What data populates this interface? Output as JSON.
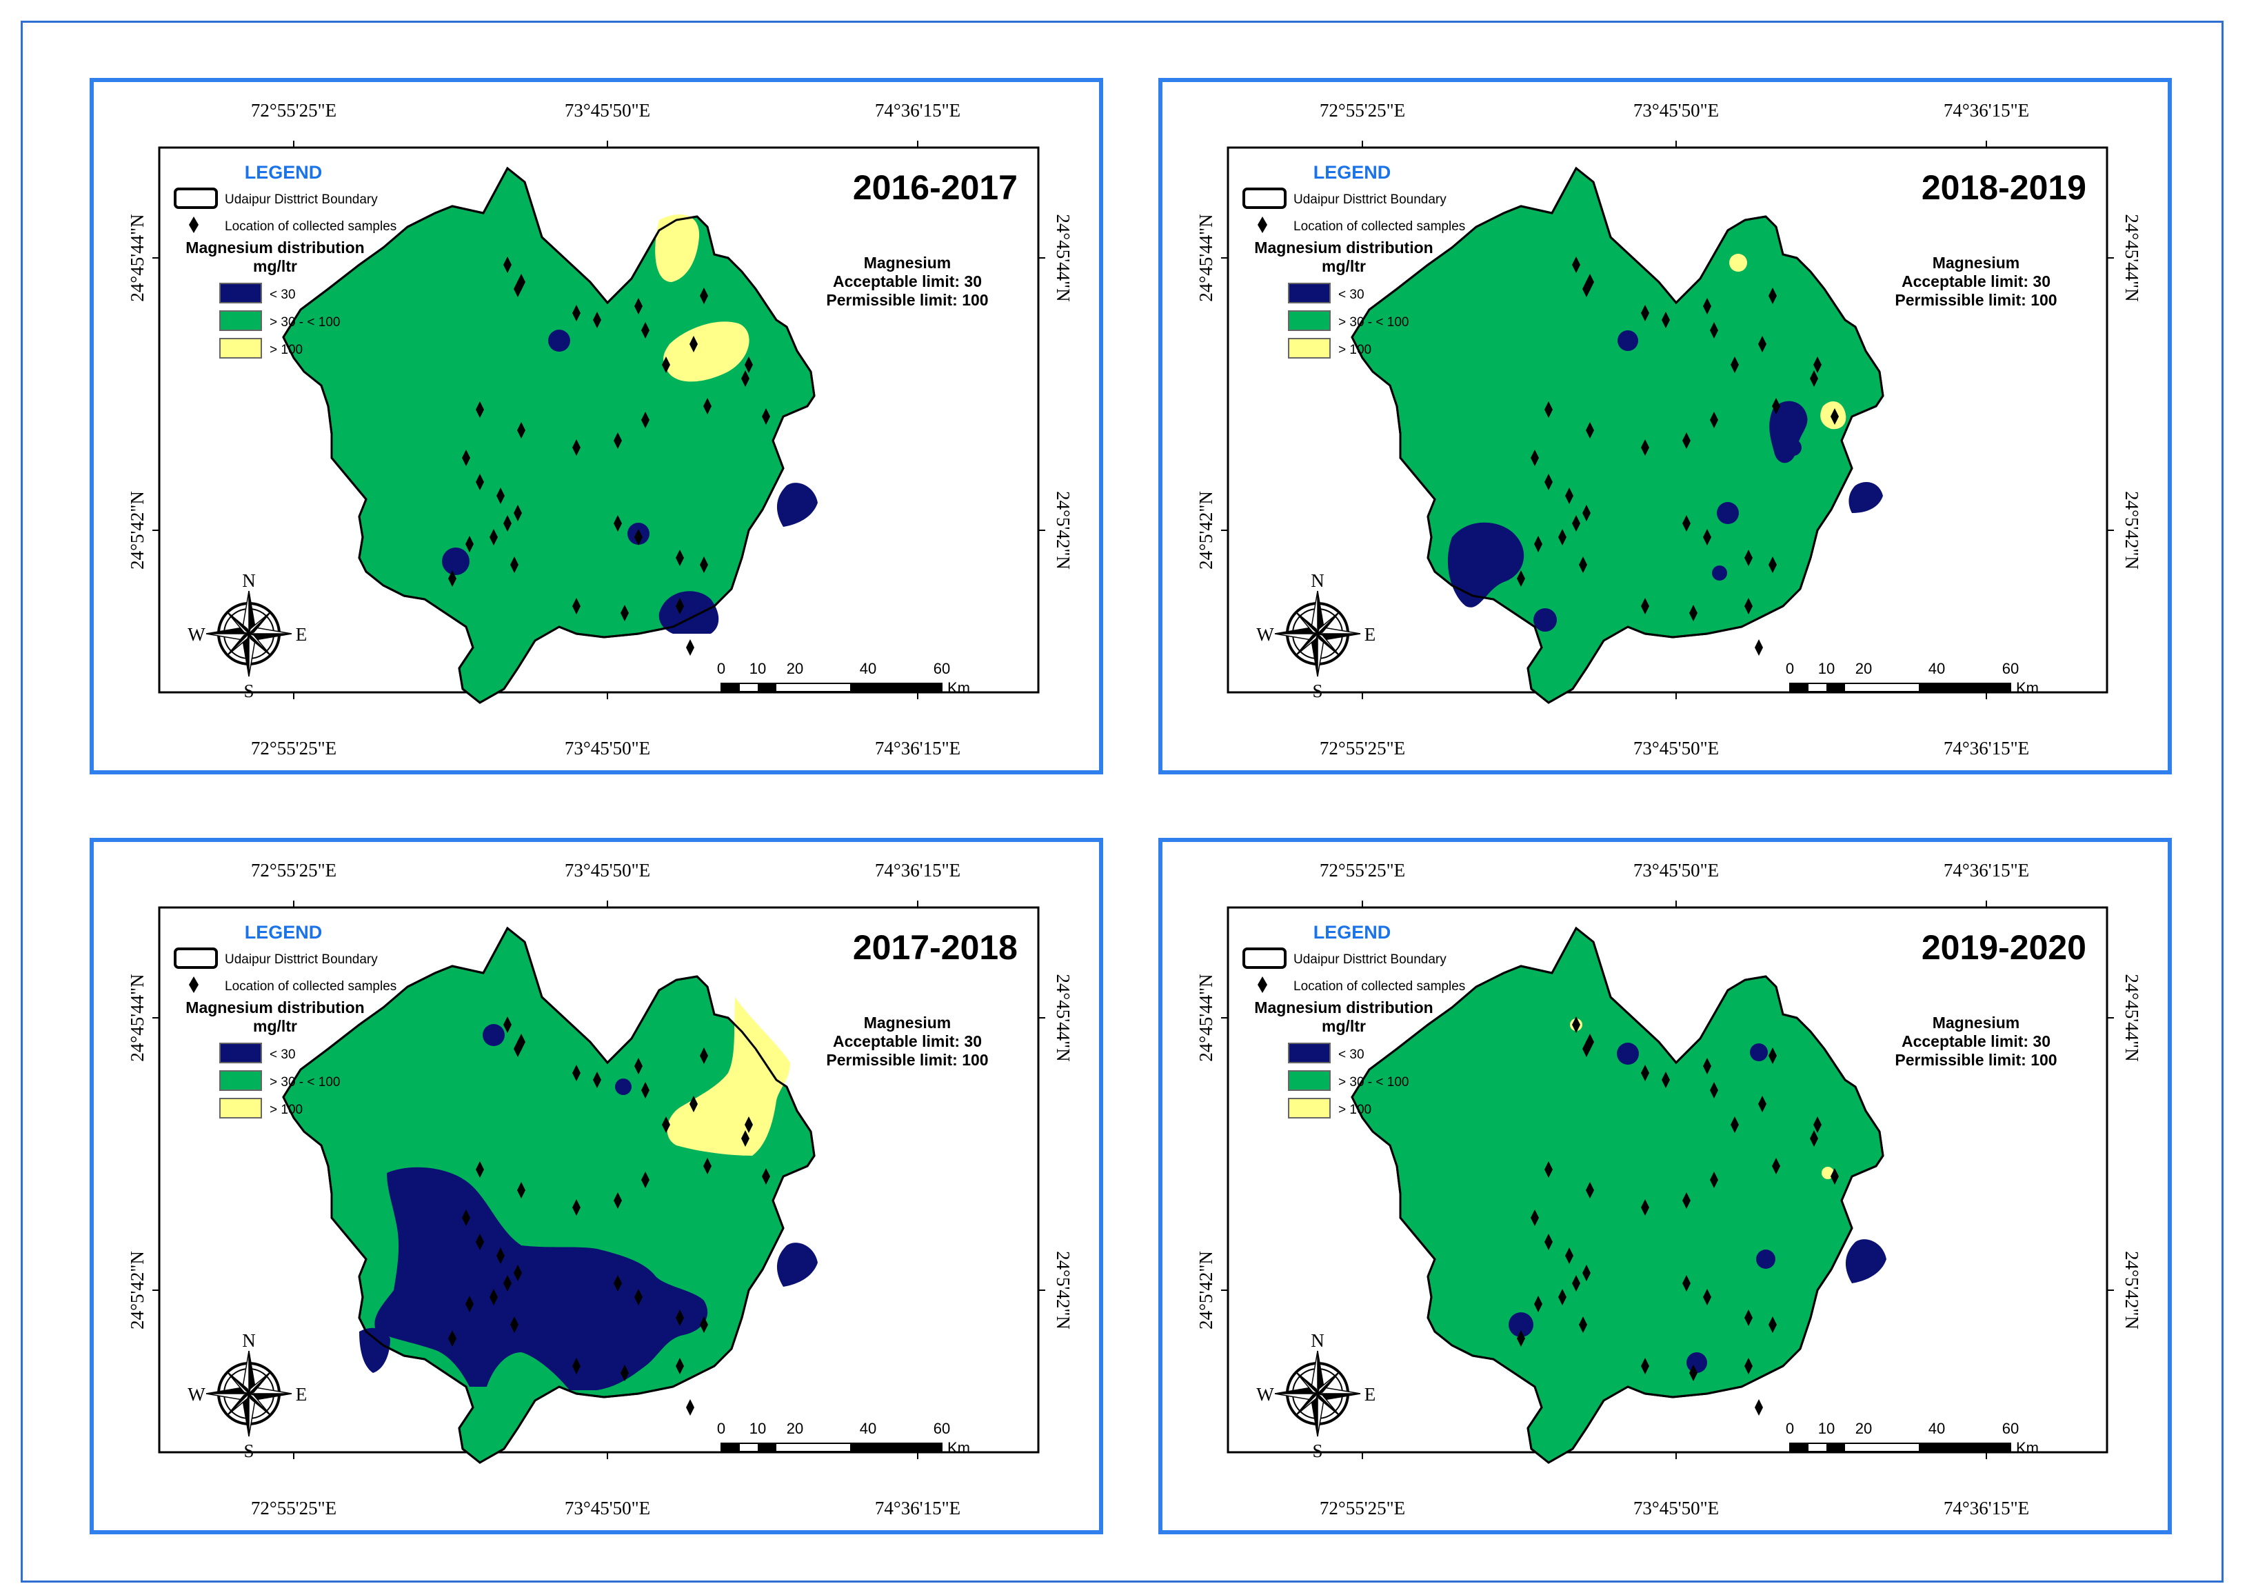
{
  "colors": {
    "frame": "#2f80ed",
    "low": "#0b1173",
    "mid": "#00b35a",
    "high": "#ffff8a"
  },
  "coords": {
    "lon": [
      "72°55'25\"E",
      "73°45'50\"E",
      "74°36'15\"E"
    ],
    "lat": [
      "24°45'44\"N",
      "24°5'42\"N"
    ]
  },
  "legend": {
    "title": "LEGEND",
    "boundary": "Udaipur Disttrict Boundary",
    "samples": "Location of collected samples",
    "dist_title": "Magnesium distribution",
    "dist_unit": "mg/ltr",
    "classes": [
      "< 30",
      "> 30 - < 100",
      "> 100"
    ]
  },
  "limits": {
    "title": "Magnesium",
    "acceptable": "Acceptable limit: 30",
    "permissible": "Permissible limit: 100"
  },
  "compass": {
    "n": "N",
    "s": "S",
    "e": "E",
    "w": "W"
  },
  "scale": {
    "ticks": [
      "0",
      "10",
      "20",
      "40",
      "60"
    ],
    "unit": "Km"
  },
  "maps": [
    {
      "year": "2016-2017"
    },
    {
      "year": "2018-2019"
    },
    {
      "year": "2017-2018"
    },
    {
      "year": "2019-2020"
    }
  ]
}
